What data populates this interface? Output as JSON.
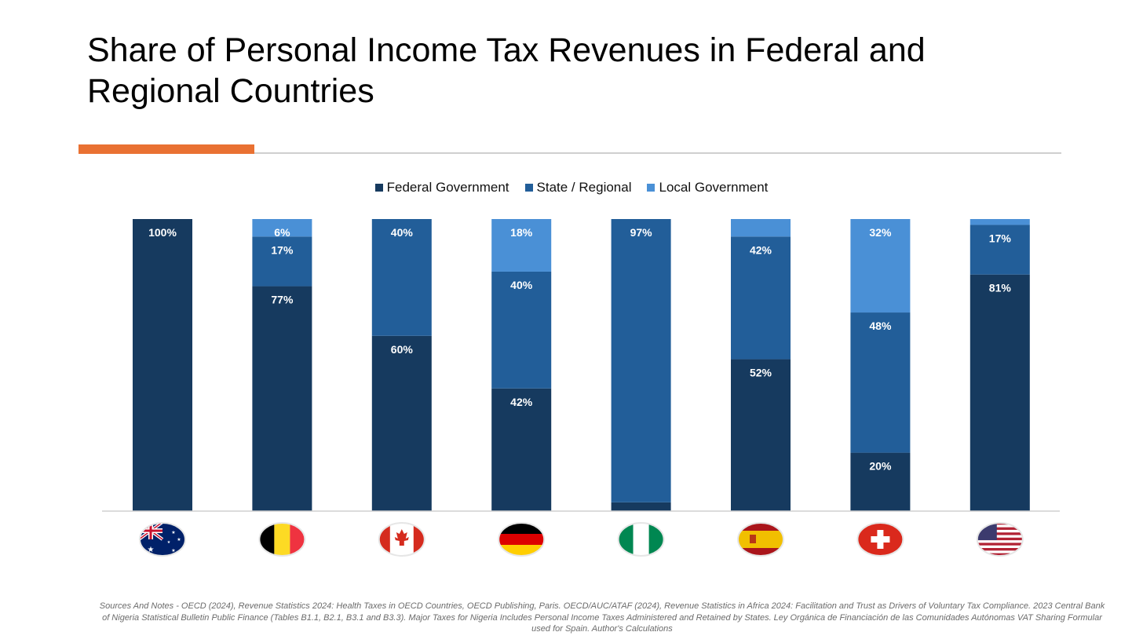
{
  "title": "Share of Personal Income Tax Revenues in Federal and Regional Countries",
  "colors": {
    "accent": "#E97132",
    "federal": "#163A5F",
    "state": "#225E99",
    "local": "#4A90D6"
  },
  "legend": [
    {
      "label": "Federal Government",
      "color": "#163A5F"
    },
    {
      "label": "State / Regional",
      "color": "#225E99"
    },
    {
      "label": "Local Government",
      "color": "#4A90D6"
    }
  ],
  "chart_data": {
    "type": "bar",
    "stacked": true,
    "categories": [
      "Australia",
      "Belgium",
      "Canada",
      "Germany",
      "Nigeria",
      "Spain",
      "Switzerland",
      "United States"
    ],
    "category_icons": [
      "australia-flag-icon",
      "belgium-flag-icon",
      "canada-flag-icon",
      "germany-flag-icon",
      "nigeria-flag-icon",
      "spain-flag-icon",
      "switzerland-flag-icon",
      "usa-flag-icon"
    ],
    "series": [
      {
        "name": "Federal Government",
        "values": [
          100,
          77,
          60,
          42,
          3,
          52,
          20,
          81
        ],
        "labels": [
          "100%",
          "77%",
          "60%",
          "42%",
          "",
          "52%",
          "20%",
          "81%"
        ]
      },
      {
        "name": "State / Regional",
        "values": [
          0,
          17,
          40,
          40,
          97,
          42,
          48,
          17
        ],
        "labels": [
          "",
          "17%",
          "40%",
          "40%",
          "97%",
          "42%",
          "48%",
          "17%"
        ]
      },
      {
        "name": "Local Government",
        "values": [
          0,
          6,
          0,
          18,
          0,
          6,
          32,
          2
        ],
        "labels": [
          "",
          "6%",
          "",
          "18%",
          "",
          "",
          "32%",
          ""
        ]
      }
    ],
    "ylim": [
      0,
      100
    ],
    "legend_position": "top-center",
    "grid": false
  },
  "source_note": "Sources And Notes - OECD (2024), Revenue Statistics 2024: Health Taxes in OECD Countries, OECD Publishing, Paris. OECD/AUC/ATAF (2024), Revenue Statistics in Africa 2024: Facilitation and Trust as Drivers of Voluntary Tax Compliance. 2023 Central Bank of Nigeria Statistical Bulletin Public Finance  (Tables B1.1, B2.1, B3.1 and B3.3). Major Taxes for Nigeria Includes Personal Income Taxes Administered and Retained by States. Ley Orgánica de Financiación de las Comunidades Autónomas VAT Sharing Formular used for Spain. Author's Calculations"
}
